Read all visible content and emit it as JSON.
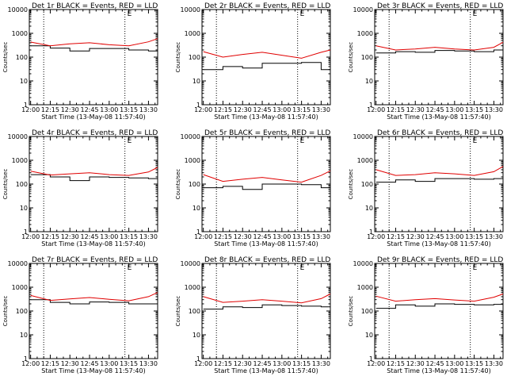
{
  "colors": {
    "events": "#000000",
    "lld": "#e00000",
    "axis": "#000000",
    "background": "#ffffff"
  },
  "common": {
    "xlabel": "Start Time (13-May-08 11:57:40)",
    "ylabel": "Counts/sec",
    "x_tick_labels": [
      "12:00",
      "12:15",
      "12:30",
      "12:45",
      "13:00",
      "13:15",
      "13:30"
    ],
    "y_tick_labels": [
      "1",
      "10",
      "100",
      "1000",
      "10000"
    ],
    "marker_label": "E",
    "vertical_dotted_lines_at": [
      "12:10",
      "13:12"
    ]
  },
  "chart_data": [
    {
      "type": "line",
      "title": "Det 1r BLACK = Events, RED = LLD",
      "xlim": [
        "11:59",
        "13:37"
      ],
      "ylim": [
        1,
        10000
      ],
      "yscale": "log",
      "x": [
        "12:00",
        "12:15",
        "12:30",
        "12:45",
        "13:00",
        "13:15",
        "13:30",
        "13:37"
      ],
      "series": [
        {
          "values": [
            300,
            240,
            180,
            230,
            230,
            200,
            180,
            220
          ]
        },
        {
          "values": [
            430,
            300,
            360,
            400,
            330,
            300,
            440,
            600
          ]
        }
      ]
    },
    {
      "type": "line",
      "title": "Det 2r BLACK = Events, RED = LLD",
      "xlim": [
        "11:59",
        "13:37"
      ],
      "ylim": [
        1,
        10000
      ],
      "yscale": "log",
      "x": [
        "12:00",
        "12:15",
        "12:30",
        "12:45",
        "13:00",
        "13:15",
        "13:30",
        "13:37"
      ],
      "series": [
        {
          "values": [
            30,
            40,
            35,
            55,
            55,
            60,
            30,
            40
          ]
        },
        {
          "values": [
            170,
            100,
            130,
            160,
            120,
            90,
            160,
            200
          ]
        }
      ]
    },
    {
      "type": "line",
      "title": "Det 3r BLACK = Events, RED = LLD",
      "xlim": [
        "11:59",
        "13:37"
      ],
      "ylim": [
        1,
        10000
      ],
      "yscale": "log",
      "x": [
        "12:00",
        "12:15",
        "12:30",
        "12:45",
        "13:00",
        "13:15",
        "13:30",
        "13:37"
      ],
      "series": [
        {
          "values": [
            150,
            170,
            160,
            190,
            180,
            170,
            200,
            230
          ]
        },
        {
          "values": [
            300,
            200,
            220,
            260,
            220,
            200,
            260,
            420
          ]
        }
      ]
    },
    {
      "type": "line",
      "title": "Det 4r BLACK = Events, RED = LLD",
      "xlim": [
        "11:59",
        "13:37"
      ],
      "ylim": [
        1,
        10000
      ],
      "yscale": "log",
      "x": [
        "12:00",
        "12:15",
        "12:30",
        "12:45",
        "13:00",
        "13:15",
        "13:30",
        "13:37"
      ],
      "series": [
        {
          "values": [
            250,
            200,
            140,
            200,
            190,
            180,
            170,
            250
          ]
        },
        {
          "values": [
            350,
            240,
            270,
            300,
            250,
            230,
            320,
            500
          ]
        }
      ]
    },
    {
      "type": "line",
      "title": "Det 5r BLACK = Events, RED = LLD",
      "xlim": [
        "11:59",
        "13:37"
      ],
      "ylim": [
        1,
        10000
      ],
      "yscale": "log",
      "x": [
        "12:00",
        "12:15",
        "12:30",
        "12:45",
        "13:00",
        "13:15",
        "13:30",
        "13:37"
      ],
      "series": [
        {
          "values": [
            70,
            80,
            60,
            100,
            100,
            95,
            70,
            90
          ]
        },
        {
          "values": [
            250,
            130,
            160,
            190,
            150,
            120,
            230,
            360
          ]
        }
      ]
    },
    {
      "type": "line",
      "title": "Det 6r BLACK = Events, RED = LLD",
      "xlim": [
        "11:59",
        "13:37"
      ],
      "ylim": [
        1,
        10000
      ],
      "yscale": "log",
      "x": [
        "12:00",
        "12:15",
        "12:30",
        "12:45",
        "13:00",
        "13:15",
        "13:30",
        "13:37"
      ],
      "series": [
        {
          "values": [
            120,
            150,
            130,
            170,
            170,
            160,
            170,
            200
          ]
        },
        {
          "values": [
            400,
            230,
            250,
            300,
            270,
            230,
            330,
            550
          ]
        }
      ]
    },
    {
      "type": "line",
      "title": "Det 7r BLACK = Events, RED = LLD",
      "xlim": [
        "11:59",
        "13:37"
      ],
      "ylim": [
        1,
        10000
      ],
      "yscale": "log",
      "x": [
        "12:00",
        "12:15",
        "12:30",
        "12:45",
        "13:00",
        "13:15",
        "13:30",
        "13:37"
      ],
      "series": [
        {
          "values": [
            300,
            230,
            200,
            240,
            230,
            200,
            200,
            300
          ]
        },
        {
          "values": [
            450,
            280,
            320,
            370,
            310,
            270,
            400,
            600
          ]
        }
      ]
    },
    {
      "type": "line",
      "title": "Det 8r BLACK = Events, RED = LLD",
      "xlim": [
        "11:59",
        "13:37"
      ],
      "ylim": [
        1,
        10000
      ],
      "yscale": "log",
      "x": [
        "12:00",
        "12:15",
        "12:30",
        "12:45",
        "13:00",
        "13:15",
        "13:30",
        "13:37"
      ],
      "series": [
        {
          "values": [
            120,
            150,
            140,
            180,
            170,
            160,
            150,
            170
          ]
        },
        {
          "values": [
            400,
            230,
            260,
            300,
            260,
            220,
            330,
            520
          ]
        }
      ]
    },
    {
      "type": "line",
      "title": "Det 9r BLACK = Events, RED = LLD",
      "xlim": [
        "11:59",
        "13:37"
      ],
      "ylim": [
        1,
        10000
      ],
      "yscale": "log",
      "x": [
        "12:00",
        "12:15",
        "12:30",
        "12:45",
        "13:00",
        "13:15",
        "13:30",
        "13:37"
      ],
      "series": [
        {
          "values": [
            130,
            180,
            160,
            200,
            190,
            180,
            190,
            230
          ]
        },
        {
          "values": [
            420,
            260,
            300,
            330,
            290,
            260,
            380,
            520
          ]
        }
      ]
    }
  ]
}
